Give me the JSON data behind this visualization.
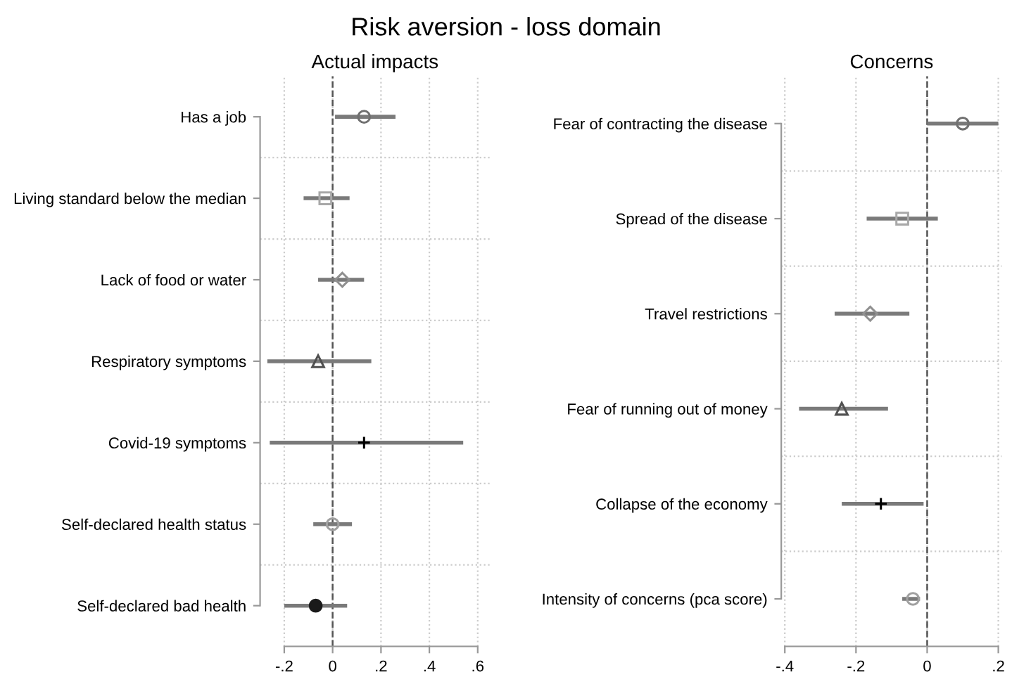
{
  "chart_data": [
    {
      "type": "scatter",
      "title": "Actual impacts",
      "annotations": [
        "Risk aversion - loss domain"
      ],
      "orientation": "horizontal",
      "grid": true,
      "legend": false,
      "categories": [
        "Has a job",
        "Living standard below the median",
        "Lack of food or water",
        "Respiratory symptoms",
        "Covid-19 symptoms",
        "Self-declared health status",
        "Self-declared bad health"
      ],
      "xlim": [
        -0.3,
        0.65
      ],
      "xticks": [
        {
          "value": -0.2,
          "label": "-.2"
        },
        0,
        {
          "value": 0.2,
          "label": ".2"
        },
        {
          "value": 0.4,
          "label": ".4"
        },
        {
          "value": 0.6,
          "label": ".6"
        }
      ],
      "ref_lines": [
        {
          "axis": "x",
          "value": 0,
          "line_style": "dashed",
          "color": "#555555"
        }
      ],
      "series": [
        {
          "color": "#707070",
          "marker": "circle",
          "values": [
            0.13,
            null,
            null,
            null,
            null,
            null,
            null
          ],
          "errors": [
            [
              0.01,
              0.26
            ],
            null,
            null,
            null,
            null,
            null,
            null
          ]
        },
        {
          "color": "#a8a8a8",
          "marker": "square",
          "values": [
            null,
            -0.03,
            null,
            null,
            null,
            null,
            null
          ],
          "errors": [
            null,
            [
              -0.12,
              0.07
            ],
            null,
            null,
            null,
            null,
            null
          ]
        },
        {
          "color": "#909090",
          "marker": "diamond",
          "values": [
            null,
            null,
            0.04,
            null,
            null,
            null,
            null
          ],
          "errors": [
            null,
            null,
            [
              -0.06,
              0.13
            ],
            null,
            null,
            null,
            null
          ]
        },
        {
          "color": "#505050",
          "marker": "triangle",
          "values": [
            null,
            null,
            null,
            -0.06,
            null,
            null,
            null
          ],
          "errors": [
            null,
            null,
            null,
            [
              -0.27,
              0.16
            ],
            null,
            null,
            null
          ]
        },
        {
          "color": "#000000",
          "marker": "cross",
          "values": [
            null,
            null,
            null,
            null,
            0.13,
            null,
            null
          ],
          "errors": [
            null,
            null,
            null,
            null,
            [
              -0.26,
              0.54
            ],
            null,
            null
          ]
        },
        {
          "color": "#a0a0a0",
          "marker": "circle",
          "values": [
            null,
            null,
            null,
            null,
            null,
            0.0,
            null
          ],
          "errors": [
            null,
            null,
            null,
            null,
            null,
            [
              -0.08,
              0.08
            ],
            null
          ]
        },
        {
          "color": "#1a1a1a",
          "marker": "circle",
          "values": [
            null,
            null,
            null,
            null,
            null,
            null,
            -0.07
          ],
          "errors": [
            null,
            null,
            null,
            null,
            null,
            null,
            [
              -0.2,
              0.06
            ]
          ]
        }
      ]
    },
    {
      "type": "scatter",
      "title": "Concerns",
      "orientation": "horizontal",
      "grid": true,
      "legend": false,
      "categories": [
        "Fear of contracting the disease",
        "Spread of the disease",
        "Travel restrictions",
        "Fear of running out of money",
        "Collapse of the economy",
        "Intensity of concerns (pca score)"
      ],
      "xlim": [
        -0.41,
        0.21
      ],
      "xticks": [
        {
          "value": -0.4,
          "label": "-.4"
        },
        {
          "value": -0.2,
          "label": "-.2"
        },
        0,
        {
          "value": 0.2,
          "label": ".2"
        }
      ],
      "ref_lines": [
        {
          "axis": "x",
          "value": 0,
          "line_style": "dashed",
          "color": "#555555"
        }
      ],
      "series": [
        {
          "color": "#707070",
          "marker": "circle",
          "values": [
            0.1,
            null,
            null,
            null,
            null,
            null
          ],
          "errors": [
            [
              0.0,
              0.2
            ],
            null,
            null,
            null,
            null,
            null
          ]
        },
        {
          "color": "#a8a8a8",
          "marker": "square",
          "values": [
            null,
            -0.07,
            null,
            null,
            null,
            null
          ],
          "errors": [
            null,
            [
              -0.17,
              0.03
            ],
            null,
            null,
            null,
            null
          ]
        },
        {
          "color": "#909090",
          "marker": "diamond",
          "values": [
            null,
            null,
            -0.16,
            null,
            null,
            null
          ],
          "errors": [
            null,
            null,
            [
              -0.26,
              -0.05
            ],
            null,
            null,
            null
          ]
        },
        {
          "color": "#505050",
          "marker": "triangle",
          "values": [
            null,
            null,
            null,
            -0.24,
            null,
            null
          ],
          "errors": [
            null,
            null,
            null,
            [
              -0.36,
              -0.11
            ],
            null,
            null
          ]
        },
        {
          "color": "#000000",
          "marker": "cross",
          "values": [
            null,
            null,
            null,
            null,
            -0.13,
            null
          ],
          "errors": [
            null,
            null,
            null,
            null,
            [
              -0.24,
              -0.01
            ],
            null
          ]
        },
        {
          "color": "#a0a0a0",
          "marker": "circle",
          "values": [
            null,
            null,
            null,
            null,
            null,
            -0.04
          ],
          "errors": [
            null,
            null,
            null,
            null,
            null,
            [
              -0.07,
              -0.02
            ]
          ]
        }
      ]
    }
  ]
}
